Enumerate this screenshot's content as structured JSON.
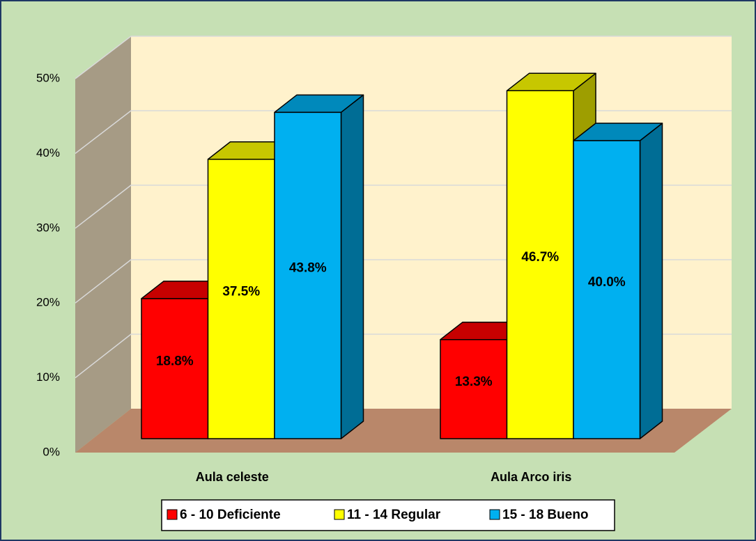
{
  "chart_data": {
    "type": "bar3d",
    "categories": [
      "Aula celeste",
      "Aula Arco iris"
    ],
    "series": [
      {
        "name": "6 - 10 Deficiente",
        "color": "#ff0000",
        "values": [
          18.8,
          13.3
        ],
        "value_labels": [
          "18.8%",
          "13.3%"
        ]
      },
      {
        "name": "11 - 14 Regular",
        "color": "#ffff00",
        "values": [
          37.5,
          46.7
        ],
        "value_labels": [
          "37.5%",
          "46.7%"
        ]
      },
      {
        "name": "15 - 18 Bueno",
        "color": "#00b0f0",
        "values": [
          43.8,
          40.0
        ],
        "value_labels": [
          "43.8%",
          "40.0%"
        ]
      }
    ],
    "ylim": [
      0,
      50
    ],
    "yticks": [
      {
        "value": 0,
        "label": "0%"
      },
      {
        "value": 10,
        "label": "10%"
      },
      {
        "value": 20,
        "label": "20%"
      },
      {
        "value": 30,
        "label": "30%"
      },
      {
        "value": 40,
        "label": "40%"
      },
      {
        "value": 50,
        "label": "50%"
      }
    ],
    "grid": true,
    "legend": "bottom"
  }
}
